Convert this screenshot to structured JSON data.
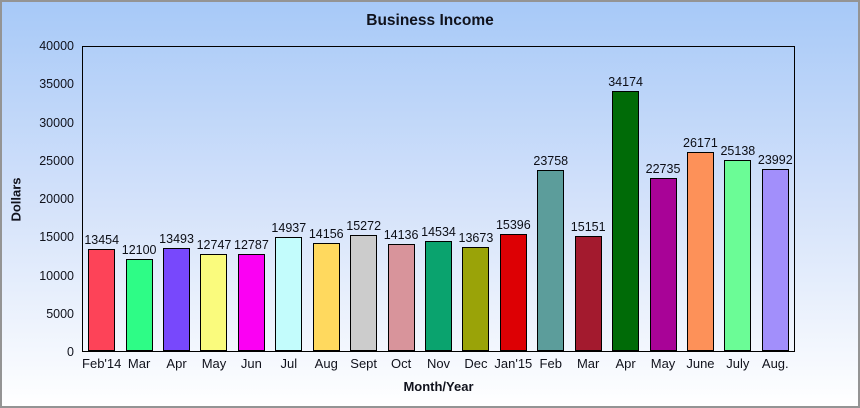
{
  "window": {
    "border_color": "#949494",
    "background_top": "#a7c9f8",
    "background_bottom": "#ffffff"
  },
  "chart_data": {
    "type": "bar",
    "title": "Business Income",
    "xlabel": "Month/Year",
    "ylabel": "Dollars",
    "ylim": [
      0,
      40000
    ],
    "ytick_step": 5000,
    "grid": false,
    "legend": false,
    "categories": [
      "Feb'14",
      "Mar",
      "Apr",
      "May",
      "Jun",
      "Jul",
      "Aug",
      "Sept",
      "Oct",
      "Nov",
      "Dec",
      "Jan'15",
      "Feb",
      "Mar",
      "Apr",
      "May",
      "June",
      "July",
      "Aug."
    ],
    "values": [
      13454,
      12100,
      13493,
      12747,
      12787,
      14937,
      14156,
      15272,
      14136,
      14534,
      13673,
      15396,
      23758,
      15151,
      34174,
      22735,
      26171,
      25138,
      23992
    ],
    "bar_colors": [
      "#FD4358",
      "#2EFC86",
      "#7848FC",
      "#FAFB7D",
      "#FB00F3",
      "#C3FCFC",
      "#FFD95E",
      "#CCCCCC",
      "#D8949B",
      "#0AA36E",
      "#9AA308",
      "#DD0004",
      "#5C9D9B",
      "#A31A2E",
      "#006B07",
      "#A80397",
      "#FD9159",
      "#6BFC96",
      "#A28FFB"
    ],
    "bar_border_color": "#000000",
    "axis_color": "#000000",
    "text_color": "#10121c"
  }
}
